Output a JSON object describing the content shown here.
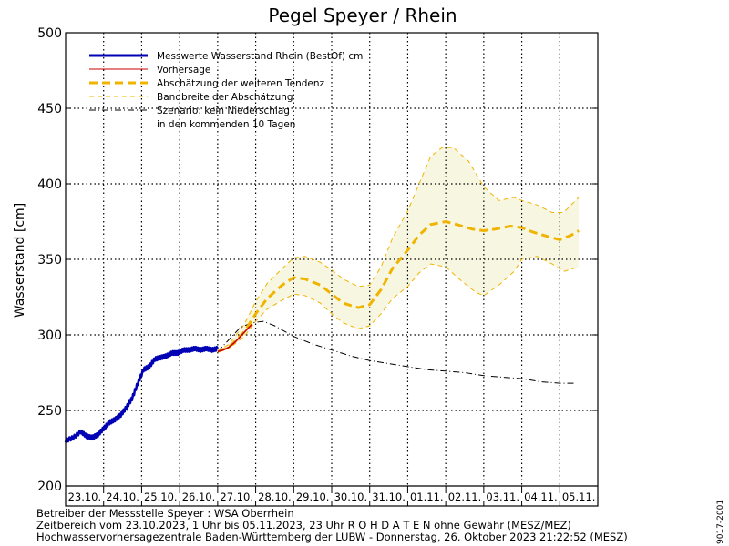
{
  "chart_data": {
    "type": "line",
    "title": "Pegel Speyer / Rhein",
    "ylabel": "Wasserstand [cm]",
    "xlabel": "",
    "ylim": [
      200,
      500
    ],
    "yticks": [
      200,
      250,
      300,
      350,
      400,
      450,
      500
    ],
    "xlim": [
      0,
      14
    ],
    "day_labels": [
      "23.10.",
      "24.10.",
      "25.10.",
      "26.10.",
      "27.10.",
      "28.10.",
      "29.10.",
      "30.10.",
      "31.10.",
      "01.11.",
      "02.11.",
      "03.11.",
      "04.11.",
      "05.11."
    ],
    "grid": true,
    "legend_position": "top-left",
    "legend": [
      {
        "label": "Messwerte Wasserstand Rhein (BestOf)   cm",
        "style": "solid-thick",
        "color": "#0000b4"
      },
      {
        "label": "Vorhersage",
        "style": "solid",
        "color": "#c80000"
      },
      {
        "label": "Abschätzung der weiteren Tendenz",
        "style": "dashed-thick",
        "color": "#f0b400"
      },
      {
        "label": "Bandbreite der Abschätzung",
        "style": "dashed",
        "color": "#f0b400"
      },
      {
        "label": "Szenario: kein Niederschlag",
        "style": "dashdot",
        "color": "#000000"
      },
      {
        "label": "in den kommenden 10 Tagen",
        "style": "none",
        "color": "#000000"
      }
    ],
    "series": [
      {
        "name": "Messwerte Wasserstand Rhein (BestOf)   cm",
        "color": "#0000b4",
        "x": [
          0,
          0.2,
          0.4,
          0.55,
          0.7,
          0.85,
          1.0,
          1.15,
          1.3,
          1.45,
          1.6,
          1.75,
          1.9,
          2.05,
          2.2,
          2.35,
          2.5,
          2.65,
          2.8,
          2.95,
          3.1,
          3.25,
          3.4,
          3.55,
          3.7,
          3.85,
          4.0
        ],
        "y": [
          230,
          232,
          236,
          233,
          232,
          234,
          238,
          242,
          244,
          247,
          252,
          258,
          268,
          277,
          279,
          284,
          285,
          286,
          288,
          288,
          290,
          290,
          291,
          290,
          291,
          290,
          291
        ]
      },
      {
        "name": "Vorhersage",
        "color": "#c80000",
        "x": [
          4.0,
          4.15,
          4.3,
          4.45,
          4.6,
          4.75,
          4.9
        ],
        "y": [
          289,
          290,
          292,
          295,
          299,
          303,
          307
        ]
      },
      {
        "name": "Abschätzung der weiteren Tendenz",
        "color": "#f0b400",
        "x": [
          4.0,
          4.3,
          4.7,
          5.0,
          5.3,
          5.7,
          6.0,
          6.3,
          6.7,
          7.0,
          7.3,
          7.7,
          8.0,
          8.3,
          8.6,
          9.0,
          9.3,
          9.6,
          10.0,
          10.3,
          10.7,
          11.0,
          11.3,
          11.7,
          12.0,
          12.3,
          12.7,
          13.0,
          13.3,
          13.5
        ],
        "y": [
          289,
          292,
          302,
          314,
          324,
          333,
          338,
          337,
          333,
          327,
          321,
          318,
          320,
          330,
          344,
          356,
          366,
          373,
          375,
          373,
          370,
          369,
          370,
          372,
          371,
          368,
          365,
          363,
          366,
          369
        ]
      },
      {
        "name": "Bandbreite der Abschätzung (oben)",
        "color": "#f0b400",
        "x": [
          4.0,
          4.3,
          4.7,
          5.0,
          5.3,
          5.7,
          6.0,
          6.3,
          6.7,
          7.0,
          7.3,
          7.7,
          8.0,
          8.3,
          8.6,
          9.0,
          9.3,
          9.6,
          9.9,
          10.2,
          10.6,
          11.0,
          11.4,
          11.8,
          12.0,
          12.4,
          12.8,
          13.1,
          13.5
        ],
        "y": [
          289,
          294,
          307,
          322,
          334,
          344,
          351,
          352,
          348,
          343,
          337,
          332,
          333,
          345,
          364,
          382,
          400,
          418,
          424,
          424,
          415,
          398,
          389,
          391,
          389,
          386,
          381,
          381,
          391
        ]
      },
      {
        "name": "Bandbreite der Abschätzung (unten)",
        "color": "#f0b400",
        "x": [
          4.0,
          4.3,
          4.7,
          5.0,
          5.3,
          5.7,
          6.0,
          6.3,
          6.7,
          7.0,
          7.3,
          7.7,
          8.0,
          8.3,
          8.6,
          9.0,
          9.3,
          9.6,
          10.0,
          10.4,
          10.8,
          11.0,
          11.4,
          11.8,
          12.0,
          12.4,
          12.8,
          13.1,
          13.5
        ],
        "y": [
          289,
          291,
          299,
          309,
          317,
          323,
          327,
          326,
          321,
          314,
          308,
          304,
          306,
          314,
          324,
          332,
          341,
          347,
          345,
          336,
          328,
          326,
          333,
          342,
          350,
          352,
          347,
          342,
          345
        ]
      },
      {
        "name": "Szenario: kein Niederschlag",
        "color": "#000000",
        "x": [
          4.0,
          4.3,
          4.6,
          4.9,
          5.2,
          5.5,
          6.0,
          6.5,
          7.0,
          7.5,
          8.0,
          8.5,
          9.0,
          9.5,
          10.0,
          10.5,
          11.0,
          11.5,
          12.0,
          12.5,
          13.0,
          13.4
        ],
        "y": [
          289,
          297,
          305,
          308,
          309,
          306,
          299,
          294,
          290,
          286,
          283,
          281,
          279,
          277,
          276,
          275,
          273,
          272,
          271,
          269,
          268,
          268
        ]
      }
    ]
  },
  "footer": {
    "line1": "Betreiber der Messstelle Speyer : WSA Oberrhein",
    "line2": "Zeitbereich vom 23.10.2023, 1 Uhr bis 05.11.2023, 23 Uhr    R O H D A T E N  ohne Gewähr (MESZ/MEZ)",
    "line3": "Hochwasservorhersagezentrale Baden-Württemberg der LUBW - Donnerstag, 26. Oktober 2023 21:22:52 (MESZ)",
    "station_code": "9017-2001"
  }
}
